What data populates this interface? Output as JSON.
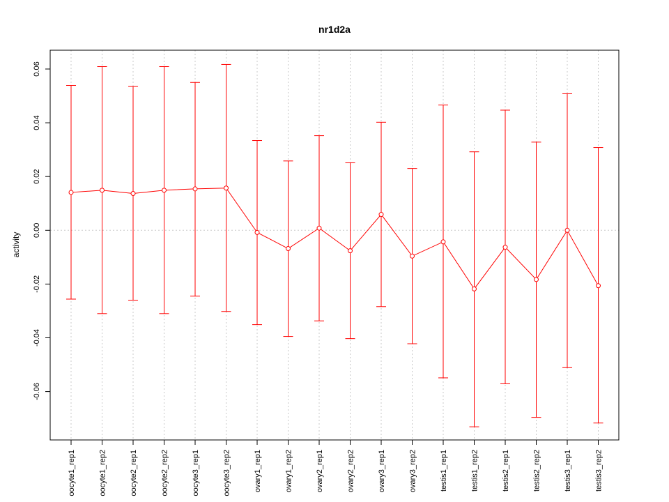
{
  "chart_data": {
    "type": "line",
    "title": "nr1d2a",
    "xlabel": "",
    "ylabel": "activity",
    "ylim": [
      -0.078,
      0.067
    ],
    "yticks": [
      -0.06,
      -0.04,
      -0.02,
      0.0,
      0.02,
      0.04,
      0.06
    ],
    "ytick_labels": [
      "-0.06",
      "-0.04",
      "-0.02",
      "0.00",
      "0.02",
      "0.04",
      "0.06"
    ],
    "grid": true,
    "categories": [
      "oocyte1_rep1",
      "oocyte1_rep2",
      "oocyte2_rep1",
      "oocyte2_rep2",
      "oocyte3_rep1",
      "oocyte3_rep2",
      "ovary1_rep1",
      "ovary1_rep2",
      "ovary2_rep1",
      "ovary2_rep2",
      "ovary3_rep1",
      "ovary3_rep2",
      "testis1_rep1",
      "testis1_rep2",
      "testis2_rep1",
      "testis2_rep2",
      "testis3_rep1",
      "testis3_rep2"
    ],
    "series": [
      {
        "color": "#ff0000",
        "values": [
          0.0141,
          0.0149,
          0.0137,
          0.0149,
          0.0154,
          0.0157,
          -0.0008,
          -0.0068,
          0.0008,
          -0.0076,
          0.0059,
          -0.0096,
          -0.0043,
          -0.0218,
          -0.0063,
          -0.0183,
          0.0,
          -0.0206
        ],
        "upper": [
          0.0539,
          0.0609,
          0.0535,
          0.0609,
          0.055,
          0.0617,
          0.0334,
          0.0258,
          0.0352,
          0.0251,
          0.0402,
          0.023,
          0.0466,
          0.0292,
          0.0447,
          0.0328,
          0.0508,
          0.0308
        ],
        "lower": [
          -0.0256,
          -0.031,
          -0.026,
          -0.031,
          -0.0245,
          -0.0302,
          -0.0351,
          -0.0395,
          -0.0337,
          -0.0403,
          -0.0284,
          -0.0422,
          -0.0549,
          -0.0731,
          -0.0571,
          -0.0696,
          -0.0511,
          -0.0717
        ]
      }
    ]
  }
}
